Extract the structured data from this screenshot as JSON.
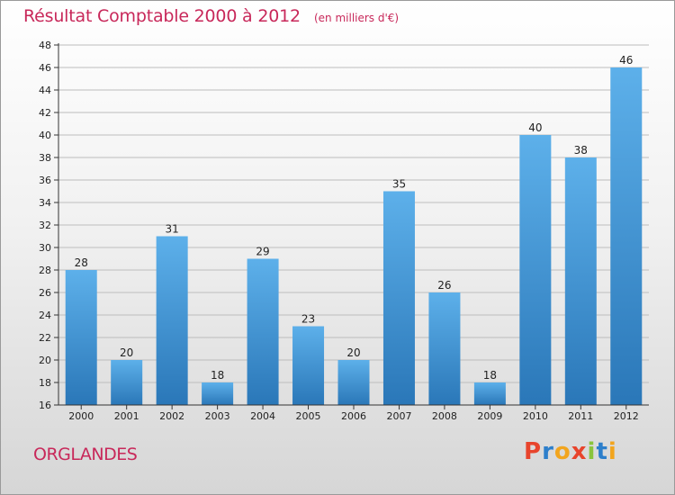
{
  "header": {
    "title": "Résultat Comptable 2000 à 2012",
    "unit": "(en milliers d'€)"
  },
  "footer": {
    "commune": "ORGLANDES",
    "logo_text": "Proxiti",
    "logo_colors": [
      "#e8442c",
      "#2d7fcb",
      "#f2a51e",
      "#e8442c",
      "#8ac43c",
      "#2d7fcb",
      "#f2a51e"
    ]
  },
  "colors": {
    "bar_light": "#5db0ea",
    "bar_dark": "#2a77b8",
    "grid": "#bdbdbd",
    "axis": "#333333",
    "text_accent": "#c8285a"
  },
  "chart_data": {
    "type": "bar",
    "title": "Résultat Comptable 2000 à 2012",
    "subtitle": "(en milliers d'€)",
    "xlabel": "",
    "ylabel": "",
    "categories": [
      "2000",
      "2001",
      "2002",
      "2003",
      "2004",
      "2005",
      "2006",
      "2007",
      "2008",
      "2009",
      "2010",
      "2011",
      "2012"
    ],
    "values": [
      28,
      20,
      31,
      18,
      29,
      23,
      20,
      35,
      26,
      18,
      40,
      38,
      46
    ],
    "ylim": [
      16,
      48
    ],
    "yticks": [
      16,
      18,
      20,
      22,
      24,
      26,
      28,
      30,
      32,
      34,
      36,
      38,
      40,
      42,
      44,
      46,
      48
    ],
    "grid": true,
    "data_labels": true
  }
}
